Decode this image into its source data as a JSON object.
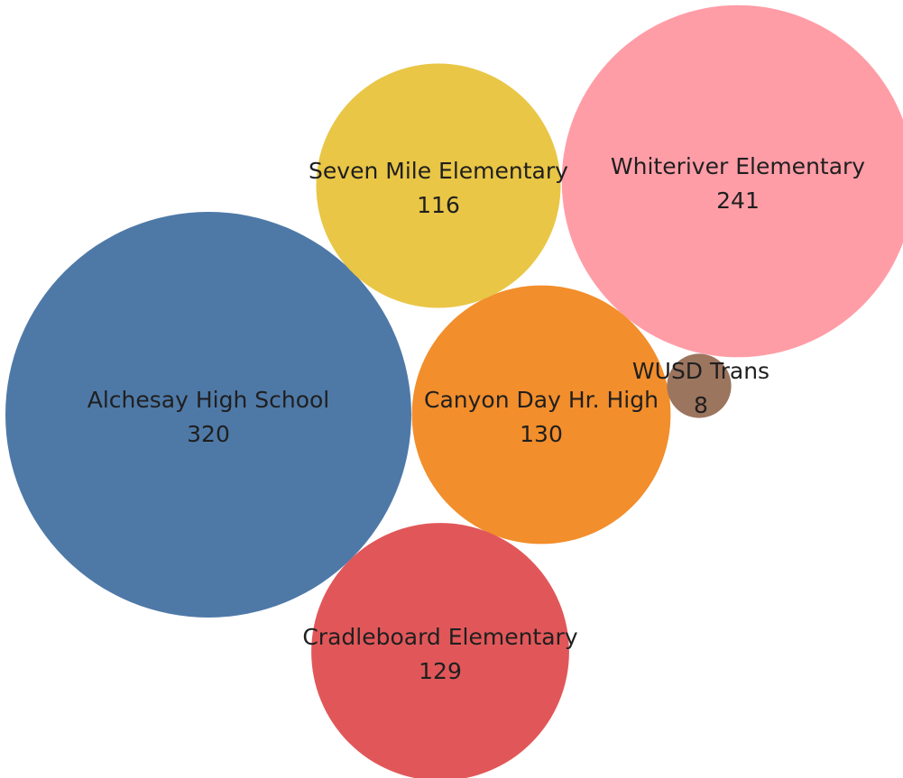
{
  "chart_data": {
    "type": "bubble",
    "title": "",
    "items": [
      {
        "label": "Alchesay High School",
        "value": 320,
        "color": "#4e79a7"
      },
      {
        "label": "Whiteriver Elementary",
        "value": 241,
        "color": "#ff9da7"
      },
      {
        "label": "Canyon Day Hr. High",
        "value": 130,
        "color": "#f28e2b"
      },
      {
        "label": "Cradleboard Elementary",
        "value": 129,
        "color": "#e15759"
      },
      {
        "label": "Seven Mile Elementary",
        "value": 116,
        "color": "#e9c646"
      },
      {
        "label": "WUSD Trans",
        "value": 8,
        "color": "#9c755f"
      }
    ]
  }
}
